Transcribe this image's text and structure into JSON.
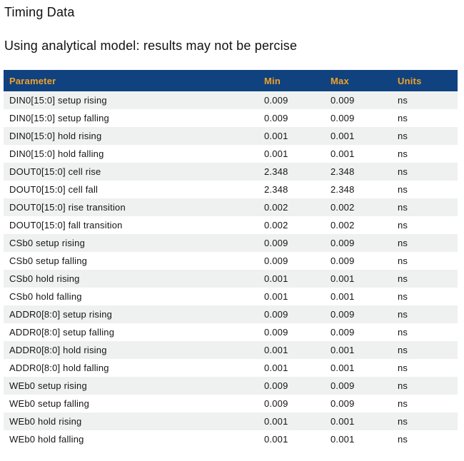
{
  "page": {
    "title": "Timing Data",
    "subtitle": "Using analytical model: results may not be percise"
  },
  "colors": {
    "header_bg": "#10427f",
    "header_text": "#f2a127",
    "row_alt_bg": "#eff1f1",
    "body_text": "#151515"
  },
  "table": {
    "columns": [
      "Parameter",
      "Min",
      "Max",
      "Units"
    ],
    "rows": [
      {
        "parameter": "DIN0[15:0] setup rising",
        "min": "0.009",
        "max": "0.009",
        "units": "ns"
      },
      {
        "parameter": "DIN0[15:0] setup falling",
        "min": "0.009",
        "max": "0.009",
        "units": "ns"
      },
      {
        "parameter": "DIN0[15:0] hold rising",
        "min": "0.001",
        "max": "0.001",
        "units": "ns"
      },
      {
        "parameter": "DIN0[15:0] hold falling",
        "min": "0.001",
        "max": "0.001",
        "units": "ns"
      },
      {
        "parameter": "DOUT0[15:0] cell rise",
        "min": "2.348",
        "max": "2.348",
        "units": "ns"
      },
      {
        "parameter": "DOUT0[15:0] cell fall",
        "min": "2.348",
        "max": "2.348",
        "units": "ns"
      },
      {
        "parameter": "DOUT0[15:0] rise transition",
        "min": "0.002",
        "max": "0.002",
        "units": "ns"
      },
      {
        "parameter": "DOUT0[15:0] fall transition",
        "min": "0.002",
        "max": "0.002",
        "units": "ns"
      },
      {
        "parameter": "CSb0 setup rising",
        "min": "0.009",
        "max": "0.009",
        "units": "ns"
      },
      {
        "parameter": "CSb0 setup falling",
        "min": "0.009",
        "max": "0.009",
        "units": "ns"
      },
      {
        "parameter": "CSb0 hold rising",
        "min": "0.001",
        "max": "0.001",
        "units": "ns"
      },
      {
        "parameter": "CSb0 hold falling",
        "min": "0.001",
        "max": "0.001",
        "units": "ns"
      },
      {
        "parameter": "ADDR0[8:0] setup rising",
        "min": "0.009",
        "max": "0.009",
        "units": "ns"
      },
      {
        "parameter": "ADDR0[8:0] setup falling",
        "min": "0.009",
        "max": "0.009",
        "units": "ns"
      },
      {
        "parameter": "ADDR0[8:0] hold rising",
        "min": "0.001",
        "max": "0.001",
        "units": "ns"
      },
      {
        "parameter": "ADDR0[8:0] hold falling",
        "min": "0.001",
        "max": "0.001",
        "units": "ns"
      },
      {
        "parameter": "WEb0 setup rising",
        "min": "0.009",
        "max": "0.009",
        "units": "ns"
      },
      {
        "parameter": "WEb0 setup falling",
        "min": "0.009",
        "max": "0.009",
        "units": "ns"
      },
      {
        "parameter": "WEb0 hold rising",
        "min": "0.001",
        "max": "0.001",
        "units": "ns"
      },
      {
        "parameter": "WEb0 hold falling",
        "min": "0.001",
        "max": "0.001",
        "units": "ns"
      }
    ]
  }
}
